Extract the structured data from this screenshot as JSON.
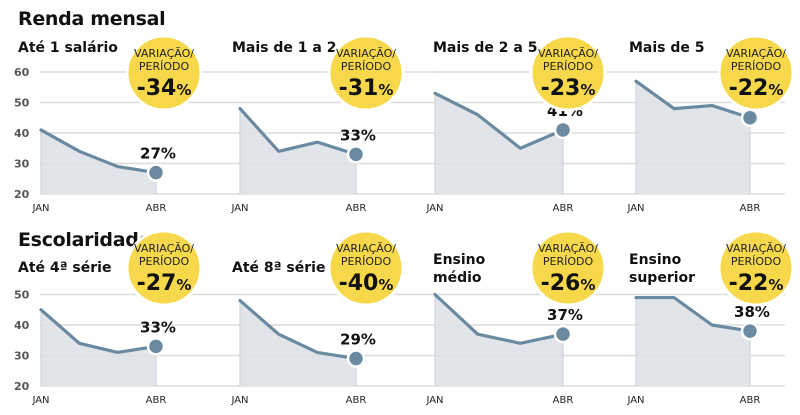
{
  "sections": [
    {
      "title": "Renda mensal"
    },
    {
      "title": "Escolaridade"
    }
  ],
  "bubble_text": {
    "line1": "VARIAÇÃO/",
    "line2": "PERÍODO",
    "pct_sign": "%"
  },
  "colors": {
    "bubble": "#f6d84a",
    "line": "#6a8aa1",
    "area": "#e1e5ea",
    "grid": "#dddddd"
  },
  "chart_data": [
    {
      "type": "area",
      "section": "Renda mensal",
      "title": "Até 1 salário",
      "x": [
        "JAN",
        "FEV",
        "MAR",
        "ABR"
      ],
      "xticks_shown": [
        "JAN",
        "ABR"
      ],
      "values": [
        41,
        34,
        29,
        27
      ],
      "end_label": "27%",
      "variation": "-34",
      "ylim": [
        20,
        60
      ],
      "yticks": [
        60,
        50,
        40,
        30,
        20
      ],
      "grid": true
    },
    {
      "type": "area",
      "section": "Renda mensal",
      "title": "Mais de 1 a 2",
      "x": [
        "JAN",
        "FEV",
        "MAR",
        "ABR"
      ],
      "xticks_shown": [
        "JAN",
        "ABR"
      ],
      "values": [
        48,
        34,
        37,
        33
      ],
      "end_label": "33%",
      "variation": "-31",
      "ylim": [
        20,
        60
      ],
      "grid": true
    },
    {
      "type": "area",
      "section": "Renda mensal",
      "title": "Mais de 2 a 5",
      "x": [
        "JAN",
        "FEV",
        "MAR",
        "ABR"
      ],
      "xticks_shown": [
        "JAN",
        "ABR"
      ],
      "values": [
        53,
        46,
        35,
        41
      ],
      "end_label": "41%",
      "variation": "-23",
      "ylim": [
        20,
        60
      ],
      "grid": true
    },
    {
      "type": "area",
      "section": "Renda mensal",
      "title": "Mais de 5",
      "x": [
        "JAN",
        "FEV",
        "MAR",
        "ABR"
      ],
      "xticks_shown": [
        "JAN",
        "ABR"
      ],
      "values": [
        57,
        48,
        49,
        45
      ],
      "end_label": "45%",
      "variation": "-22",
      "ylim": [
        20,
        60
      ],
      "grid": true
    },
    {
      "type": "area",
      "section": "Escolaridade",
      "title": "Até 4ª série",
      "x": [
        "JAN",
        "FEV",
        "MAR",
        "ABR"
      ],
      "xticks_shown": [
        "JAN",
        "ABR"
      ],
      "values": [
        45,
        34,
        31,
        33
      ],
      "end_label": "33%",
      "variation": "-27",
      "ylim": [
        20,
        50
      ],
      "yticks": [
        50,
        40,
        30,
        20
      ],
      "grid": true
    },
    {
      "type": "area",
      "section": "Escolaridade",
      "title": "Até 8ª série",
      "x": [
        "JAN",
        "FEV",
        "MAR",
        "ABR"
      ],
      "xticks_shown": [
        "JAN",
        "ABR"
      ],
      "values": [
        48,
        37,
        31,
        29
      ],
      "end_label": "29%",
      "variation": "-40",
      "ylim": [
        20,
        50
      ],
      "grid": true
    },
    {
      "type": "area",
      "section": "Escolaridade",
      "title": "Ensino médio",
      "title_lines": [
        "Ensino",
        "médio"
      ],
      "x": [
        "JAN",
        "FEV",
        "MAR",
        "ABR"
      ],
      "xticks_shown": [
        "JAN",
        "ABR"
      ],
      "values": [
        50,
        37,
        34,
        37
      ],
      "end_label": "37%",
      "variation": "-26",
      "ylim": [
        20,
        50
      ],
      "grid": true
    },
    {
      "type": "area",
      "section": "Escolaridade",
      "title": "Ensino superior",
      "title_lines": [
        "Ensino",
        "superior"
      ],
      "x": [
        "JAN",
        "FEV",
        "MAR",
        "ABR"
      ],
      "xticks_shown": [
        "JAN",
        "ABR"
      ],
      "values": [
        49,
        49,
        40,
        38
      ],
      "end_label": "38%",
      "variation": "-22",
      "ylim": [
        20,
        50
      ],
      "grid": true
    }
  ]
}
